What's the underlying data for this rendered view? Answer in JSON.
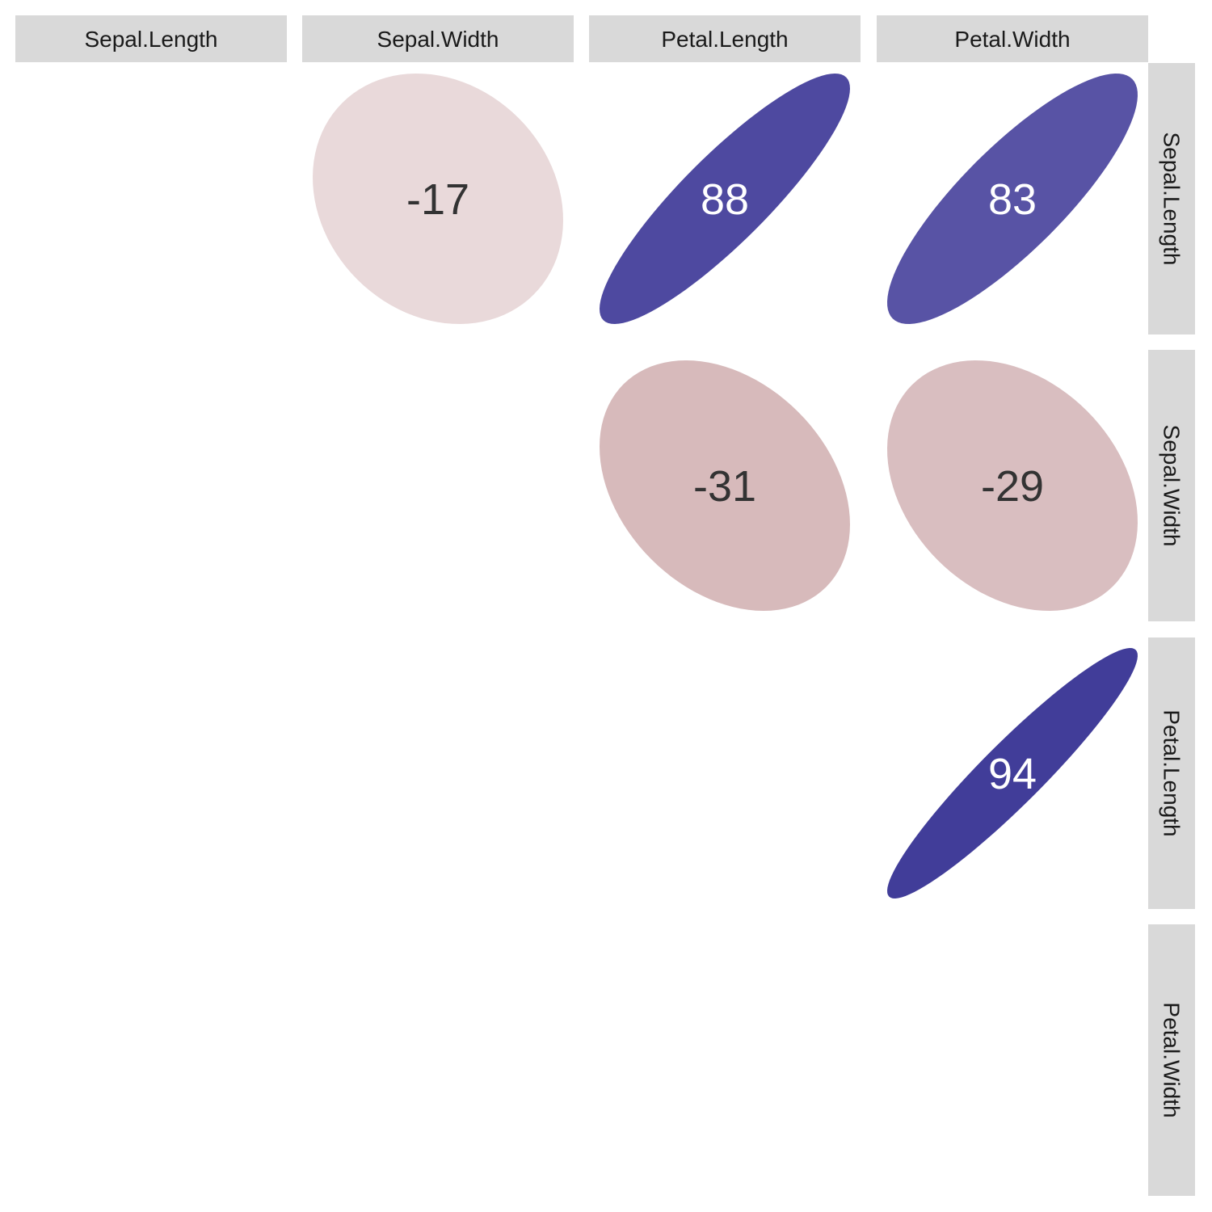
{
  "chart_data": {
    "type": "heatmap",
    "title": "",
    "variables": [
      "Sepal.Length",
      "Sepal.Width",
      "Petal.Length",
      "Petal.Width"
    ],
    "column_labels": [
      "Sepal.Length",
      "Sepal.Width",
      "Petal.Length",
      "Petal.Width"
    ],
    "row_labels": [
      "Sepal.Length",
      "Sepal.Width",
      "Petal.Length",
      "Petal.Width"
    ],
    "cells": [
      {
        "row": "Sepal.Length",
        "col": "Sepal.Width",
        "value": -0.17,
        "label": "-17"
      },
      {
        "row": "Sepal.Length",
        "col": "Petal.Length",
        "value": 0.88,
        "label": "88"
      },
      {
        "row": "Sepal.Length",
        "col": "Petal.Width",
        "value": 0.83,
        "label": "83"
      },
      {
        "row": "Sepal.Width",
        "col": "Petal.Length",
        "value": -0.31,
        "label": "-31"
      },
      {
        "row": "Sepal.Width",
        "col": "Petal.Width",
        "value": -0.29,
        "label": "-29"
      },
      {
        "row": "Petal.Length",
        "col": "Petal.Width",
        "value": 0.94,
        "label": "94"
      }
    ],
    "value_range": [
      -1,
      1
    ],
    "colors": {
      "positive": "#3f3a98",
      "negative": "#c9a2a4",
      "neutral": "#ffffff",
      "strip_fill": "#d9d9d9",
      "text_dark": "#333333",
      "text_light": "#ffffff"
    }
  }
}
